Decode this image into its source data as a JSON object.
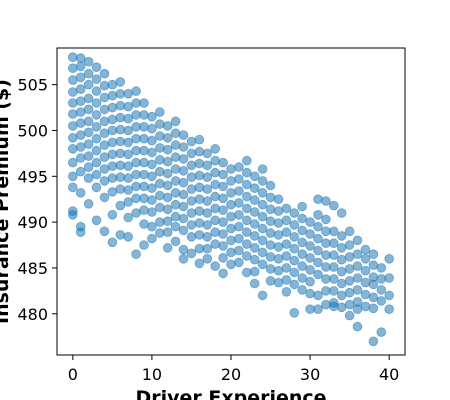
{
  "chart_data": {
    "type": "scatter",
    "title": "",
    "xlabel": "Driver Experience",
    "ylabel": "Insurance Premium ($)",
    "xlim": [
      -2,
      42
    ],
    "ylim": [
      475.5,
      509
    ],
    "xticks": [
      0,
      10,
      20,
      30,
      40
    ],
    "yticks": [
      480,
      485,
      490,
      495,
      500,
      505
    ],
    "grid": false,
    "legend": "none",
    "color": "#1f77b4",
    "opacity": 0.55,
    "points": [
      [
        0,
        508.0
      ],
      [
        0,
        506.8
      ],
      [
        0,
        505.5
      ],
      [
        0,
        504.2
      ],
      [
        0,
        503.0
      ],
      [
        0,
        501.8
      ],
      [
        0,
        500.5
      ],
      [
        0,
        499.2
      ],
      [
        0,
        498.0
      ],
      [
        0,
        496.5
      ],
      [
        0,
        495.0
      ],
      [
        0,
        493.8
      ],
      [
        0,
        491.2
      ],
      [
        0,
        490.8
      ],
      [
        1,
        507.9
      ],
      [
        1,
        507.0
      ],
      [
        1,
        505.8
      ],
      [
        1,
        504.5
      ],
      [
        1,
        503.2
      ],
      [
        1,
        502.0
      ],
      [
        1,
        500.8
      ],
      [
        1,
        499.5
      ],
      [
        1,
        498.2
      ],
      [
        1,
        497.0
      ],
      [
        1,
        495.5
      ],
      [
        1,
        493.2
      ],
      [
        1,
        489.5
      ],
      [
        1,
        488.9
      ],
      [
        2,
        507.5
      ],
      [
        2,
        506.2
      ],
      [
        2,
        505.0
      ],
      [
        2,
        503.5
      ],
      [
        2,
        502.3
      ],
      [
        2,
        501.0
      ],
      [
        2,
        499.8
      ],
      [
        2,
        498.5
      ],
      [
        2,
        497.2
      ],
      [
        2,
        496.0
      ],
      [
        2,
        494.8
      ],
      [
        2,
        492.0
      ],
      [
        3,
        506.9
      ],
      [
        3,
        505.6
      ],
      [
        3,
        504.3
      ],
      [
        3,
        503.0
      ],
      [
        3,
        501.7
      ],
      [
        3,
        500.4
      ],
      [
        3,
        499.1
      ],
      [
        3,
        497.8
      ],
      [
        3,
        496.5
      ],
      [
        3,
        495.2
      ],
      [
        3,
        493.8
      ],
      [
        3,
        490.2
      ],
      [
        4,
        506.2
      ],
      [
        4,
        504.9
      ],
      [
        4,
        503.6
      ],
      [
        4,
        502.3
      ],
      [
        4,
        501.0
      ],
      [
        4,
        499.7
      ],
      [
        4,
        498.4
      ],
      [
        4,
        497.1
      ],
      [
        4,
        495.8
      ],
      [
        4,
        494.5
      ],
      [
        4,
        492.7
      ],
      [
        4,
        489.0
      ],
      [
        5,
        505.0
      ],
      [
        5,
        503.8
      ],
      [
        5,
        502.5
      ],
      [
        5,
        501.2
      ],
      [
        5,
        500.0
      ],
      [
        5,
        498.7
      ],
      [
        5,
        497.4
      ],
      [
        5,
        496.1
      ],
      [
        5,
        494.8
      ],
      [
        5,
        493.3
      ],
      [
        5,
        490.8
      ],
      [
        5,
        487.8
      ],
      [
        6,
        505.3
      ],
      [
        6,
        504.0
      ],
      [
        6,
        502.7
      ],
      [
        6,
        501.4
      ],
      [
        6,
        500.1
      ],
      [
        6,
        498.8
      ],
      [
        6,
        497.5
      ],
      [
        6,
        496.2
      ],
      [
        6,
        494.9
      ],
      [
        6,
        493.6
      ],
      [
        6,
        491.8
      ],
      [
        6,
        488.6
      ],
      [
        7,
        504.0
      ],
      [
        7,
        502.6
      ],
      [
        7,
        501.3
      ],
      [
        7,
        500.0
      ],
      [
        7,
        498.7
      ],
      [
        7,
        497.4
      ],
      [
        7,
        496.1
      ],
      [
        7,
        494.8
      ],
      [
        7,
        493.5
      ],
      [
        7,
        492.2
      ],
      [
        7,
        490.5
      ],
      [
        7,
        488.4
      ],
      [
        8,
        504.3
      ],
      [
        8,
        503.0
      ],
      [
        8,
        501.7
      ],
      [
        8,
        500.4
      ],
      [
        8,
        499.1
      ],
      [
        8,
        497.8
      ],
      [
        8,
        496.5
      ],
      [
        8,
        495.2
      ],
      [
        8,
        493.9
      ],
      [
        8,
        492.6
      ],
      [
        8,
        491.0
      ],
      [
        8,
        486.5
      ],
      [
        9,
        503.0
      ],
      [
        9,
        501.7
      ],
      [
        9,
        500.4
      ],
      [
        9,
        499.1
      ],
      [
        9,
        497.8
      ],
      [
        9,
        496.5
      ],
      [
        9,
        495.2
      ],
      [
        9,
        493.9
      ],
      [
        9,
        492.6
      ],
      [
        9,
        491.3
      ],
      [
        9,
        489.8
      ],
      [
        9,
        487.5
      ],
      [
        10,
        501.5
      ],
      [
        10,
        500.2
      ],
      [
        10,
        498.9
      ],
      [
        10,
        497.6
      ],
      [
        10,
        496.3
      ],
      [
        10,
        495.0
      ],
      [
        10,
        493.7
      ],
      [
        10,
        492.4
      ],
      [
        10,
        491.1
      ],
      [
        10,
        489.5
      ],
      [
        10,
        488.2
      ],
      [
        11,
        502.0
      ],
      [
        11,
        500.7
      ],
      [
        11,
        499.4
      ],
      [
        11,
        498.1
      ],
      [
        11,
        496.8
      ],
      [
        11,
        495.5
      ],
      [
        11,
        494.2
      ],
      [
        11,
        492.9
      ],
      [
        11,
        491.6
      ],
      [
        11,
        490.0
      ],
      [
        11,
        488.8
      ],
      [
        12,
        500.5
      ],
      [
        12,
        499.2
      ],
      [
        12,
        497.9
      ],
      [
        12,
        496.6
      ],
      [
        12,
        495.3
      ],
      [
        12,
        494.0
      ],
      [
        12,
        492.7
      ],
      [
        12,
        491.4
      ],
      [
        12,
        490.1
      ],
      [
        12,
        488.9
      ],
      [
        12,
        487.2
      ],
      [
        13,
        501.0
      ],
      [
        13,
        499.7
      ],
      [
        13,
        498.4
      ],
      [
        13,
        497.1
      ],
      [
        13,
        495.8
      ],
      [
        13,
        494.5
      ],
      [
        13,
        493.2
      ],
      [
        13,
        491.9
      ],
      [
        13,
        490.6
      ],
      [
        13,
        489.5
      ],
      [
        13,
        487.9
      ],
      [
        14,
        499.5
      ],
      [
        14,
        498.2
      ],
      [
        14,
        496.9
      ],
      [
        14,
        495.6
      ],
      [
        14,
        494.3
      ],
      [
        14,
        493.0
      ],
      [
        14,
        491.7
      ],
      [
        14,
        490.4
      ],
      [
        14,
        489.1
      ],
      [
        14,
        487.0
      ],
      [
        14,
        486.0
      ],
      [
        15,
        498.8
      ],
      [
        15,
        497.5
      ],
      [
        15,
        496.2
      ],
      [
        15,
        494.9
      ],
      [
        15,
        493.6
      ],
      [
        15,
        492.3
      ],
      [
        15,
        491.0
      ],
      [
        15,
        489.7
      ],
      [
        15,
        488.4
      ],
      [
        15,
        486.6
      ],
      [
        16,
        499.0
      ],
      [
        16,
        497.7
      ],
      [
        16,
        496.4
      ],
      [
        16,
        495.1
      ],
      [
        16,
        493.8
      ],
      [
        16,
        492.5
      ],
      [
        16,
        491.2
      ],
      [
        16,
        489.9
      ],
      [
        16,
        488.6
      ],
      [
        16,
        487.1
      ],
      [
        16,
        485.5
      ],
      [
        17,
        497.5
      ],
      [
        17,
        496.2
      ],
      [
        17,
        494.9
      ],
      [
        17,
        493.6
      ],
      [
        17,
        492.3
      ],
      [
        17,
        491.0
      ],
      [
        17,
        489.7
      ],
      [
        17,
        488.4
      ],
      [
        17,
        487.1
      ],
      [
        17,
        486.0
      ],
      [
        18,
        498.0
      ],
      [
        18,
        496.7
      ],
      [
        18,
        495.4
      ],
      [
        18,
        494.1
      ],
      [
        18,
        492.8
      ],
      [
        18,
        491.5
      ],
      [
        18,
        490.2
      ],
      [
        18,
        488.9
      ],
      [
        18,
        487.6
      ],
      [
        18,
        485.2
      ],
      [
        19,
        496.5
      ],
      [
        19,
        495.2
      ],
      [
        19,
        493.9
      ],
      [
        19,
        492.6
      ],
      [
        19,
        491.3
      ],
      [
        19,
        490.0
      ],
      [
        19,
        488.7
      ],
      [
        19,
        487.4
      ],
      [
        19,
        486.1
      ],
      [
        19,
        484.4
      ],
      [
        20,
        495.8
      ],
      [
        20,
        494.5
      ],
      [
        20,
        493.2
      ],
      [
        20,
        491.9
      ],
      [
        20,
        490.6
      ],
      [
        20,
        489.3
      ],
      [
        20,
        488.0
      ],
      [
        20,
        486.7
      ],
      [
        20,
        485.4
      ],
      [
        21,
        496.0
      ],
      [
        21,
        494.7
      ],
      [
        21,
        493.4
      ],
      [
        21,
        492.1
      ],
      [
        21,
        490.8
      ],
      [
        21,
        489.5
      ],
      [
        21,
        488.2
      ],
      [
        21,
        486.9
      ],
      [
        21,
        485.6
      ],
      [
        22,
        496.7
      ],
      [
        22,
        495.4
      ],
      [
        22,
        494.1
      ],
      [
        22,
        492.8
      ],
      [
        22,
        491.5
      ],
      [
        22,
        490.2
      ],
      [
        22,
        488.9
      ],
      [
        22,
        487.6
      ],
      [
        22,
        486.3
      ],
      [
        22,
        484.5
      ],
      [
        23,
        495.0
      ],
      [
        23,
        493.7
      ],
      [
        23,
        492.4
      ],
      [
        23,
        491.1
      ],
      [
        23,
        489.8
      ],
      [
        23,
        488.5
      ],
      [
        23,
        487.2
      ],
      [
        23,
        485.9
      ],
      [
        23,
        484.6
      ],
      [
        23,
        483.3
      ],
      [
        24,
        495.8
      ],
      [
        24,
        494.5
      ],
      [
        24,
        493.2
      ],
      [
        24,
        491.9
      ],
      [
        24,
        490.6
      ],
      [
        24,
        489.3
      ],
      [
        24,
        488.0
      ],
      [
        24,
        486.7
      ],
      [
        24,
        485.4
      ],
      [
        24,
        482.0
      ],
      [
        25,
        494.0
      ],
      [
        25,
        492.7
      ],
      [
        25,
        491.4
      ],
      [
        25,
        490.1
      ],
      [
        25,
        488.8
      ],
      [
        25,
        487.5
      ],
      [
        25,
        486.2
      ],
      [
        25,
        484.9
      ],
      [
        25,
        483.6
      ],
      [
        26,
        492.5
      ],
      [
        26,
        491.2
      ],
      [
        26,
        489.9
      ],
      [
        26,
        488.6
      ],
      [
        26,
        487.3
      ],
      [
        26,
        486.0
      ],
      [
        26,
        484.7
      ],
      [
        26,
        483.4
      ],
      [
        27,
        491.5
      ],
      [
        27,
        490.2
      ],
      [
        27,
        488.9
      ],
      [
        27,
        487.6
      ],
      [
        27,
        486.3
      ],
      [
        27,
        485.0
      ],
      [
        27,
        483.7
      ],
      [
        27,
        482.4
      ],
      [
        28,
        491.0
      ],
      [
        28,
        489.7
      ],
      [
        28,
        488.4
      ],
      [
        28,
        487.1
      ],
      [
        28,
        485.8
      ],
      [
        28,
        484.5
      ],
      [
        28,
        483.2
      ],
      [
        28,
        480.1
      ],
      [
        29,
        491.7
      ],
      [
        29,
        490.4
      ],
      [
        29,
        489.1
      ],
      [
        29,
        487.8
      ],
      [
        29,
        486.5
      ],
      [
        29,
        485.2
      ],
      [
        29,
        483.9
      ],
      [
        29,
        482.6
      ],
      [
        30,
        490.0
      ],
      [
        30,
        488.7
      ],
      [
        30,
        487.4
      ],
      [
        30,
        486.1
      ],
      [
        30,
        484.8
      ],
      [
        30,
        483.5
      ],
      [
        30,
        482.2
      ],
      [
        30,
        480.5
      ],
      [
        31,
        492.5
      ],
      [
        31,
        490.8
      ],
      [
        31,
        489.5
      ],
      [
        31,
        488.2
      ],
      [
        31,
        486.9
      ],
      [
        31,
        485.6
      ],
      [
        31,
        484.3
      ],
      [
        31,
        482.0
      ],
      [
        31,
        480.5
      ],
      [
        32,
        492.3
      ],
      [
        32,
        490.3
      ],
      [
        32,
        489.0
      ],
      [
        32,
        487.7
      ],
      [
        32,
        486.4
      ],
      [
        32,
        485.1
      ],
      [
        32,
        483.8
      ],
      [
        32,
        482.5
      ],
      [
        32,
        481.0
      ],
      [
        33,
        491.8
      ],
      [
        33,
        489.0
      ],
      [
        33,
        487.7
      ],
      [
        33,
        486.4
      ],
      [
        33,
        485.1
      ],
      [
        33,
        483.8
      ],
      [
        33,
        482.5
      ],
      [
        33,
        481.2
      ],
      [
        33,
        480.8
      ],
      [
        34,
        491.0
      ],
      [
        34,
        488.5
      ],
      [
        34,
        487.2
      ],
      [
        34,
        485.9
      ],
      [
        34,
        484.6
      ],
      [
        34,
        483.3
      ],
      [
        34,
        482.0
      ],
      [
        34,
        480.7
      ],
      [
        35,
        489.0
      ],
      [
        35,
        487.5
      ],
      [
        35,
        486.2
      ],
      [
        35,
        484.9
      ],
      [
        35,
        483.6
      ],
      [
        35,
        482.3
      ],
      [
        35,
        481.0
      ],
      [
        35,
        479.8
      ],
      [
        36,
        488.0
      ],
      [
        36,
        486.5
      ],
      [
        36,
        485.2
      ],
      [
        36,
        483.9
      ],
      [
        36,
        482.6
      ],
      [
        36,
        481.3
      ],
      [
        36,
        480.5
      ],
      [
        36,
        478.6
      ],
      [
        37,
        487.0
      ],
      [
        37,
        486.0
      ],
      [
        37,
        484.7
      ],
      [
        37,
        483.4
      ],
      [
        37,
        482.1
      ],
      [
        37,
        480.8
      ],
      [
        38,
        486.5
      ],
      [
        38,
        485.3
      ],
      [
        38,
        484.0
      ],
      [
        38,
        483.2
      ],
      [
        38,
        481.8
      ],
      [
        38,
        480.6
      ],
      [
        38,
        477.0
      ],
      [
        39,
        485.0
      ],
      [
        39,
        483.8
      ],
      [
        39,
        482.6
      ],
      [
        39,
        481.4
      ],
      [
        39,
        478.0
      ],
      [
        40,
        486.0
      ],
      [
        40,
        483.9
      ],
      [
        40,
        482.0
      ],
      [
        40,
        480.5
      ]
    ]
  }
}
